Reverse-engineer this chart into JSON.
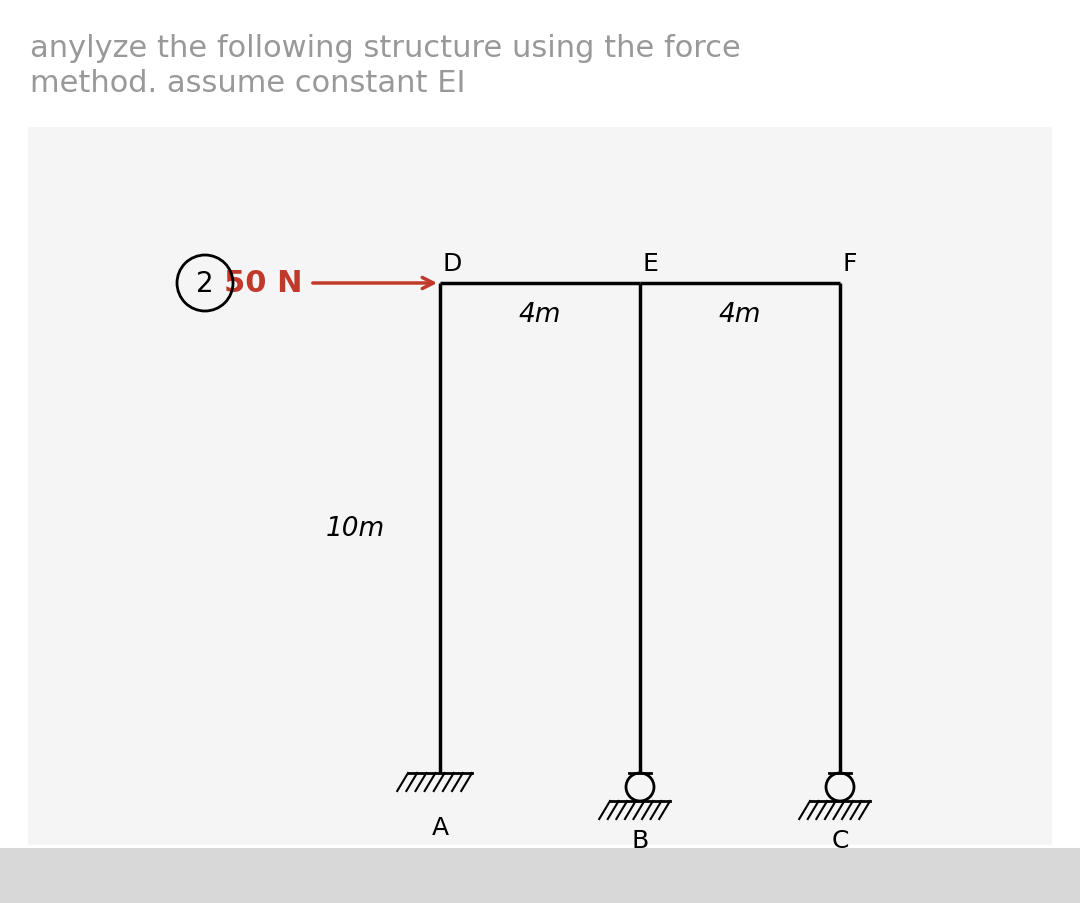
{
  "title_line1": "anylyze the following structure using the force",
  "title_line2": "method. assume constant EI",
  "bg_color": "#ffffff",
  "panel_color": "#f5f5f5",
  "bottom_bar_color": "#d8d8d8",
  "line_color": "#000000",
  "force_color": "#c0392b",
  "force_label": "50 N",
  "dim_label_DE": "4m",
  "dim_label_EF": "4m",
  "height_label": "10m",
  "circle_number": "2",
  "title_color": "#999999",
  "label_color": "#000000"
}
